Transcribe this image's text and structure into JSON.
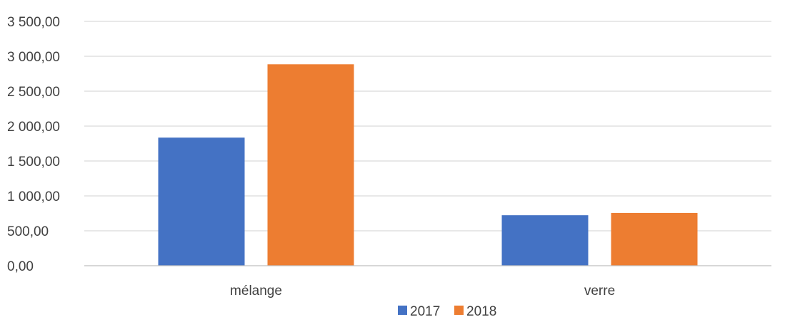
{
  "chart_data": {
    "type": "bar",
    "title": "",
    "xlabel": "",
    "ylabel": "",
    "categories": [
      "mélange",
      "verre"
    ],
    "series": [
      {
        "name": "2017",
        "values": [
          1835,
          723
        ],
        "color": "#4472c4"
      },
      {
        "name": "2018",
        "values": [
          2885,
          756
        ],
        "color": "#ed7d31"
      }
    ],
    "ylim": [
      0,
      3500
    ],
    "y_ticks": [
      0,
      500,
      1000,
      1500,
      2000,
      2500,
      3000,
      3500
    ],
    "y_tick_labels": [
      "0,00",
      "500,00",
      "1 000,00",
      "1 500,00",
      "2 000,00",
      "2 500,00",
      "3 000,00",
      "3 500,00"
    ],
    "grid": true,
    "legend_position": "bottom"
  }
}
